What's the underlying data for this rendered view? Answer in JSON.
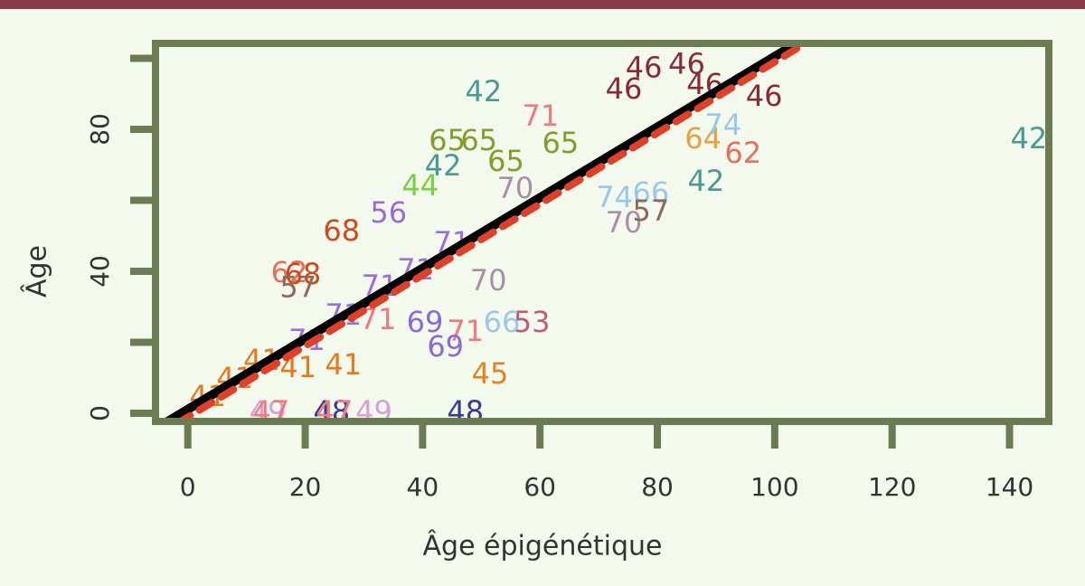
{
  "chart_data": {
    "type": "scatter",
    "xlabel": "Âge épigénétique",
    "ylabel": "Âge",
    "xlim": [
      -5.5,
      146.7
    ],
    "ylim": [
      -2.3,
      104.2
    ],
    "xticks": [
      0,
      20,
      40,
      60,
      80,
      100,
      120,
      140
    ],
    "yticks": [
      0,
      {
        "value": 20,
        "label": null
      },
      40,
      {
        "value": 60,
        "label": null
      },
      80,
      {
        "value": 100,
        "label": null
      }
    ],
    "frame_color": "#6b7c52",
    "series": [
      {
        "name": "42",
        "color": "#4a9a94",
        "x": [
          50.4,
          143.3,
          88.3,
          43.5
        ],
        "values": [
          90.2,
          76.9,
          65,
          69.3
        ]
      },
      {
        "name": "46",
        "color": "#8b2a35",
        "x": [
          98.2,
          77.7,
          85,
          74.3,
          88.1
        ],
        "values": [
          88.9,
          97,
          98,
          91,
          92.2
        ]
      },
      {
        "name": "62",
        "color": "#e8705a",
        "x": [
          94.6,
          17.3
        ],
        "values": [
          72.9,
          39.2
        ]
      },
      {
        "name": "68",
        "color": "#d04a20",
        "x": [
          26.2,
          19.6
        ],
        "values": [
          51,
          38.7
        ]
      },
      {
        "name": "45",
        "color": "#e8801e",
        "x": [
          51.5
        ],
        "values": [
          10.7
        ]
      },
      {
        "name": "48",
        "color": "#3a3a90",
        "x": [
          47.3,
          24.5
        ],
        "values": [
          0,
          0
        ]
      },
      {
        "name": "49",
        "color": "#d6a0d8",
        "x": [
          31.7,
          13.6
        ],
        "values": [
          0,
          0
        ]
      },
      {
        "name": "47",
        "color": "#f07a80",
        "x": [
          14.2,
          25
        ],
        "values": [
          0,
          0
        ]
      },
      {
        "name": "53",
        "color": "#c05a7a",
        "x": [
          58.6
        ],
        "values": [
          25.2
        ]
      },
      {
        "name": "71",
        "color": "#f07a80",
        "x": [
          32.4,
          60.1,
          47.3
        ],
        "values": [
          26,
          83.3,
          22.7
        ]
      },
      {
        "name": "69",
        "color": "#8a6ad8",
        "x": [
          43.9,
          40.4
        ],
        "values": [
          18.3,
          25.2
        ]
      },
      {
        "name": "71",
        "color": "#9a70e0",
        "x": [
          20.3,
          26.5,
          32.7,
          38.8,
          45
        ],
        "values": [
          20.1,
          27.3,
          35.4,
          40,
          47.6
        ]
      },
      {
        "name": "70",
        "color": "#a890a8",
        "x": [
          51.2,
          55.8,
          74.3
        ],
        "values": [
          36.9,
          62.9,
          53.2
        ]
      },
      {
        "name": "65",
        "color": "#8a9a2a",
        "x": [
          49.6,
          44.2,
          54.2,
          63.5
        ],
        "values": [
          76.4,
          76.4,
          70.6,
          75.7
        ]
      },
      {
        "name": "66",
        "color": "#9ac8e8",
        "x": [
          53.5,
          78.9
        ],
        "values": [
          25.2,
          61.7
        ]
      },
      {
        "name": "56",
        "color": "#9a6ad8",
        "x": [
          34.2
        ],
        "values": [
          56.1
        ]
      },
      {
        "name": "44",
        "color": "#7ad040",
        "x": [
          39.6
        ],
        "values": [
          63.7
        ]
      },
      {
        "name": "64",
        "color": "#e8a040",
        "x": [
          87.8
        ],
        "values": [
          76.9
        ]
      },
      {
        "name": "41",
        "color": "#e87a1e",
        "x": [
          3.4,
          8,
          12.6,
          18.8,
          26.5
        ],
        "values": [
          4.3,
          9.4,
          14.5,
          12.5,
          13.2
        ]
      },
      {
        "name": "57",
        "color": "#8a6a5a",
        "x": [
          18.8,
          78.9
        ],
        "values": [
          35,
          56.6
        ]
      },
      {
        "name": "74",
        "color": "#9ac8e8",
        "x": [
          91.2,
          72.7
        ],
        "values": [
          80.8,
          60.4
        ]
      }
    ],
    "lines": [
      {
        "color": "#000000",
        "dashed": false,
        "x": [
          -3.9,
          103.5
        ],
        "values": [
          -2.8,
          104
        ]
      },
      {
        "color": "#e0402a",
        "dashed": true,
        "x": [
          -1.7,
          105
        ],
        "values": [
          -2.8,
          104
        ]
      }
    ]
  }
}
